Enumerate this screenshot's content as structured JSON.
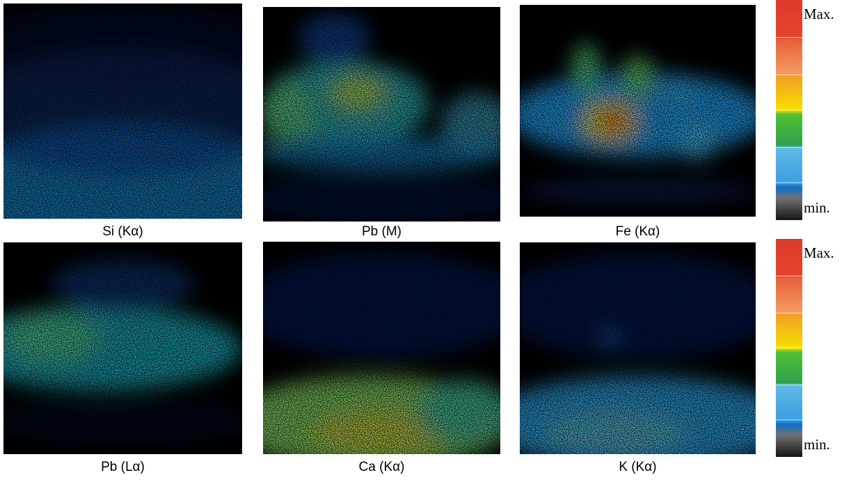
{
  "panels": [
    {
      "label": "Si (Kα)"
    },
    {
      "label": "Pb (M)"
    },
    {
      "label": "Fe (Kα)"
    },
    {
      "label": "Pb (Lα)"
    },
    {
      "label": "Ca (Kα)"
    },
    {
      "label": "K (Kα)"
    }
  ],
  "colorbars": [
    {
      "max_label": "Max.",
      "min_label": "min."
    },
    {
      "max_label": "Max.",
      "min_label": "min."
    }
  ]
}
